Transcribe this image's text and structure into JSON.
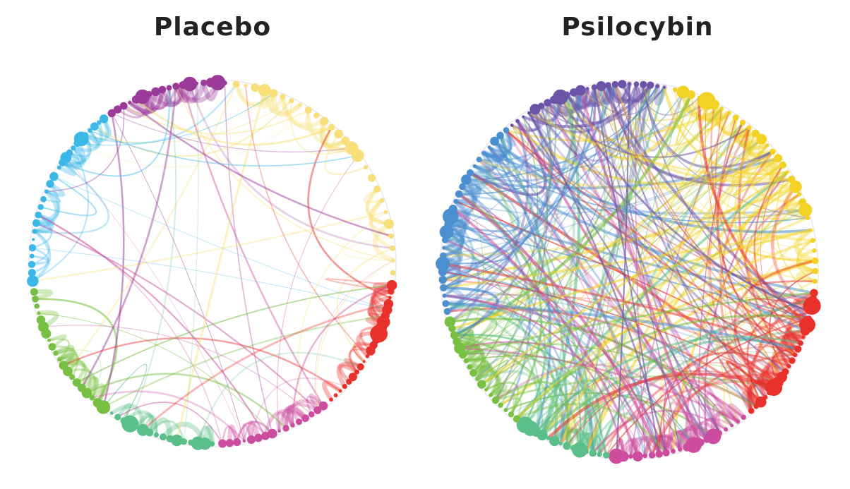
{
  "panels": [
    {
      "title": "Placebo",
      "density": "sparse"
    },
    {
      "title": "Psilocybin",
      "density": "dense"
    }
  ],
  "module_colors": {
    "purple_magenta": "#9b3a99",
    "light_blue": "#3bb8e8",
    "yellow": "#f7e07a",
    "red": "#e8312b",
    "pink": "#cc4c9e",
    "teal_green": "#5bbf8a",
    "green": "#78c043",
    "violet": "#6a54a8",
    "blue": "#4a8fd0",
    "gold": "#f2d325"
  },
  "node_shape": "circle",
  "layout": "circular"
}
